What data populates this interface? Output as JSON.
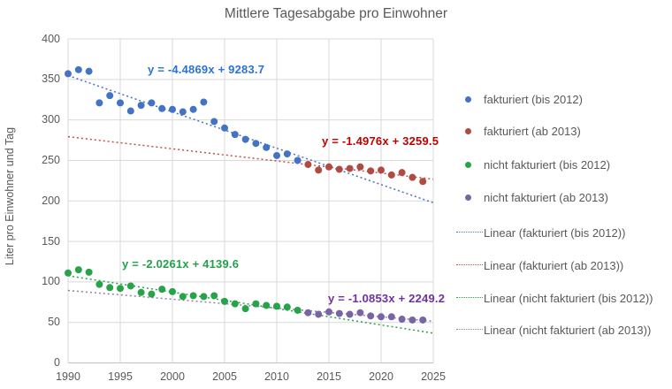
{
  "chart_data": {
    "type": "scatter",
    "title": "Mittlere Tagesabgabe pro Einwohner",
    "xlabel": "",
    "ylabel": "Liter pro Einwohner und Tag",
    "xlim": [
      1990,
      2025
    ],
    "ylim": [
      0,
      400
    ],
    "x_ticks": [
      1990,
      1995,
      2000,
      2005,
      2010,
      2015,
      2020,
      2025
    ],
    "y_ticks": [
      0,
      50,
      100,
      150,
      200,
      250,
      300,
      350,
      400
    ],
    "grid": true,
    "legend_position": "right",
    "series": [
      {
        "name": "fakturiert (bis 2012)",
        "color": "#4472C4",
        "x": [
          1990,
          1991,
          1992,
          1993,
          1994,
          1995,
          1996,
          1997,
          1998,
          1999,
          2000,
          2001,
          2002,
          2003,
          2004,
          2005,
          2006,
          2007,
          2008,
          2009,
          2010,
          2011,
          2012
        ],
        "y": [
          357,
          362,
          360,
          321,
          330,
          321,
          311,
          318,
          321,
          314,
          313,
          310,
          313,
          322,
          298,
          290,
          282,
          276,
          271,
          266,
          256,
          258,
          250
        ],
        "trend": {
          "label": "Linear (fakturiert (bis 2012))",
          "equation": "y = -4.4869x + 9283.7",
          "slope": -4.4869,
          "intercept": 9283.7,
          "color": "#4472C4",
          "eq_color": "#2B72D9"
        }
      },
      {
        "name": "fakturiert (ab 2013)",
        "color": "#B04A42",
        "x": [
          2013,
          2014,
          2015,
          2016,
          2017,
          2018,
          2019,
          2020,
          2021,
          2022,
          2023,
          2024
        ],
        "y": [
          245,
          238,
          242,
          239,
          240,
          242,
          237,
          238,
          232,
          235,
          229,
          224
        ],
        "trend": {
          "label": "Linear (fakturiert (ab 2013))",
          "equation": "y = -1.4976x + 3259.5",
          "slope": -1.4976,
          "intercept": 3259.5,
          "color": "#C0504D",
          "eq_color": "#C00000"
        }
      },
      {
        "name": "nicht fakturiert (bis 2012)",
        "color": "#27A348",
        "x": [
          1990,
          1991,
          1992,
          1993,
          1994,
          1995,
          1996,
          1997,
          1998,
          1999,
          2000,
          2001,
          2002,
          2003,
          2004,
          2005,
          2006,
          2007,
          2008,
          2009,
          2010,
          2011,
          2012
        ],
        "y": [
          111,
          115,
          112,
          97,
          93,
          92,
          95,
          87,
          85,
          91,
          88,
          82,
          83,
          82,
          83,
          76,
          73,
          67,
          73,
          71,
          70,
          69,
          65
        ],
        "trend": {
          "label": "Linear (nicht fakturiert (bis 2012))",
          "equation": "y = -2.0261x + 4139.6",
          "slope": -2.0261,
          "intercept": 4139.6,
          "color": "#27A348",
          "eq_color": "#21A24A"
        }
      },
      {
        "name": "nicht fakturiert (ab 2013)",
        "color": "#7765A4",
        "x": [
          2013,
          2014,
          2015,
          2016,
          2017,
          2018,
          2019,
          2020,
          2021,
          2022,
          2023,
          2024
        ],
        "y": [
          62,
          60,
          63,
          61,
          60,
          62,
          58,
          57,
          57,
          54,
          53,
          53
        ],
        "trend": {
          "label": "Linear (nicht fakturiert (ab 2013))",
          "equation": "y = -1.0853x + 2249.2",
          "slope": -1.0853,
          "intercept": 2249.2,
          "color": "#8E82A5",
          "eq_color": "#7030A0"
        }
      }
    ],
    "colors": {
      "gridline": "#D9D9D9",
      "axis_line": "#BFBFBF",
      "text": "#595959"
    }
  }
}
